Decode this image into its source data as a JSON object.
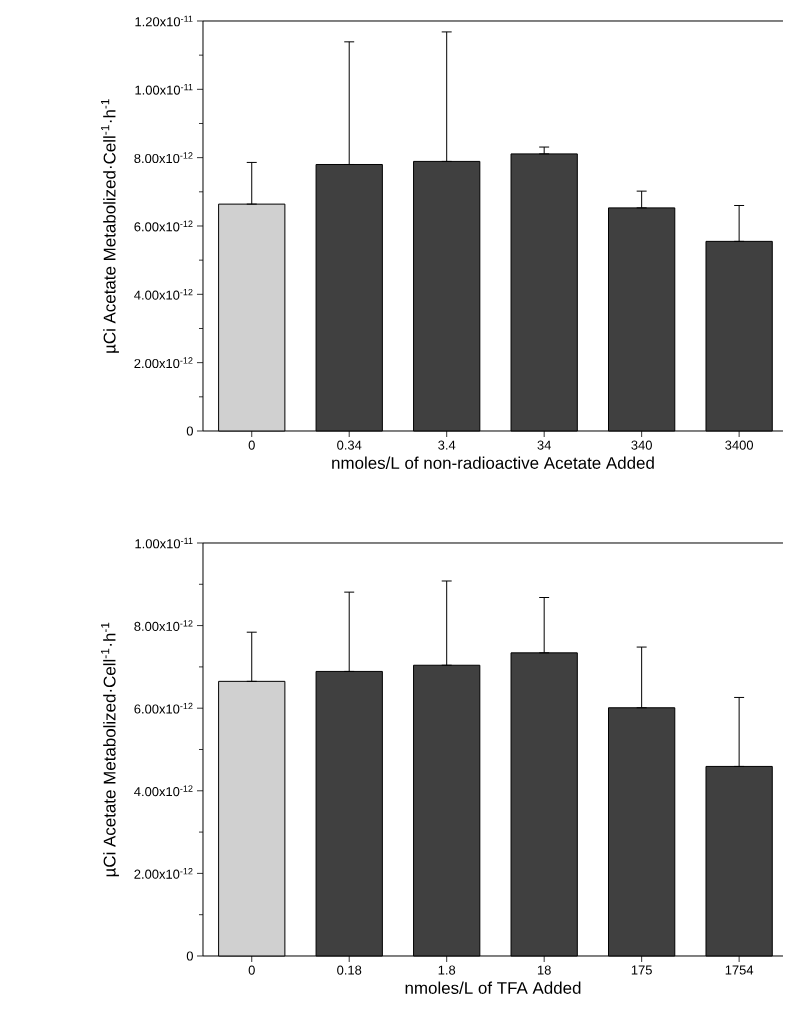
{
  "chart_data": [
    {
      "type": "bar",
      "xlabel": "nmoles/L of non-radioactive Acetate Added",
      "ylabel": "µCi Acetate Metabolized·Cell$^{-1}$·h$^{-1}$",
      "categories": [
        "0",
        "0.34",
        "3.4",
        "34",
        "340",
        "3400"
      ],
      "values": [
        6.64e-12,
        7.8e-12,
        7.89e-12,
        8.11e-12,
        6.53e-12,
        5.55e-12
      ],
      "errors": [
        [
          6.64e-12,
          7.86e-12
        ],
        [
          7.8e-12,
          1.139e-11
        ],
        [
          7.89e-12,
          1.168e-11
        ],
        [
          8.11e-12,
          8.31e-12
        ],
        [
          6.53e-12,
          7.02e-12
        ],
        [
          5.55e-12,
          6.6e-12
        ]
      ],
      "colors": [
        "#d0d0d0",
        "#404040",
        "#404040",
        "#404040",
        "#404040",
        "#404040"
      ],
      "ylim": [
        0,
        1.2e-11
      ],
      "yticks": [
        0,
        {
          "value": 2e-12,
          "label": "2.00x10$^{-12}$"
        },
        {
          "value": 4e-12,
          "label": "4.00x10$^{-12}$"
        },
        {
          "value": 6e-12,
          "label": "6.00x10$^{-12}$"
        },
        {
          "value": 8e-12,
          "label": "8.00x10$^{-12}$"
        },
        {
          "value": 1e-11,
          "label": "1.00x10$^{-11}$"
        },
        {
          "value": 1.2e-11,
          "label": "1.20x10$^{-11}$"
        }
      ]
    },
    {
      "type": "bar",
      "xlabel": "nmoles/L of TFA Added",
      "ylabel": "µCi Acetate Metabolized·Cell$^{-1}$·h$^{-1}$",
      "categories": [
        "0",
        "0.18",
        "1.8",
        "18",
        "175",
        "1754"
      ],
      "values": [
        6.65e-12,
        6.89e-12,
        7.04e-12,
        7.34e-12,
        6.01e-12,
        4.59e-12
      ],
      "errors": [
        [
          6.65e-12,
          7.84e-12
        ],
        [
          6.89e-12,
          8.81e-12
        ],
        [
          7.04e-12,
          9.08e-12
        ],
        [
          7.34e-12,
          8.68e-12
        ],
        [
          6.01e-12,
          7.48e-12
        ],
        [
          4.59e-12,
          6.26e-12
        ]
      ],
      "colors": [
        "#d0d0d0",
        "#404040",
        "#404040",
        "#404040",
        "#404040",
        "#404040"
      ],
      "ylim": [
        0,
        1e-11
      ],
      "yticks": [
        0,
        {
          "value": 2e-12,
          "label": "2.00x10$^{-12}$"
        },
        {
          "value": 4e-12,
          "label": "4.00x10$^{-12}$"
        },
        {
          "value": 6e-12,
          "label": "6.00x10$^{-12}$"
        },
        {
          "value": 8e-12,
          "label": "8.00x10$^{-12}$"
        },
        {
          "value": 1e-11,
          "label": "1.00x10$^{-11}$"
        }
      ]
    }
  ]
}
